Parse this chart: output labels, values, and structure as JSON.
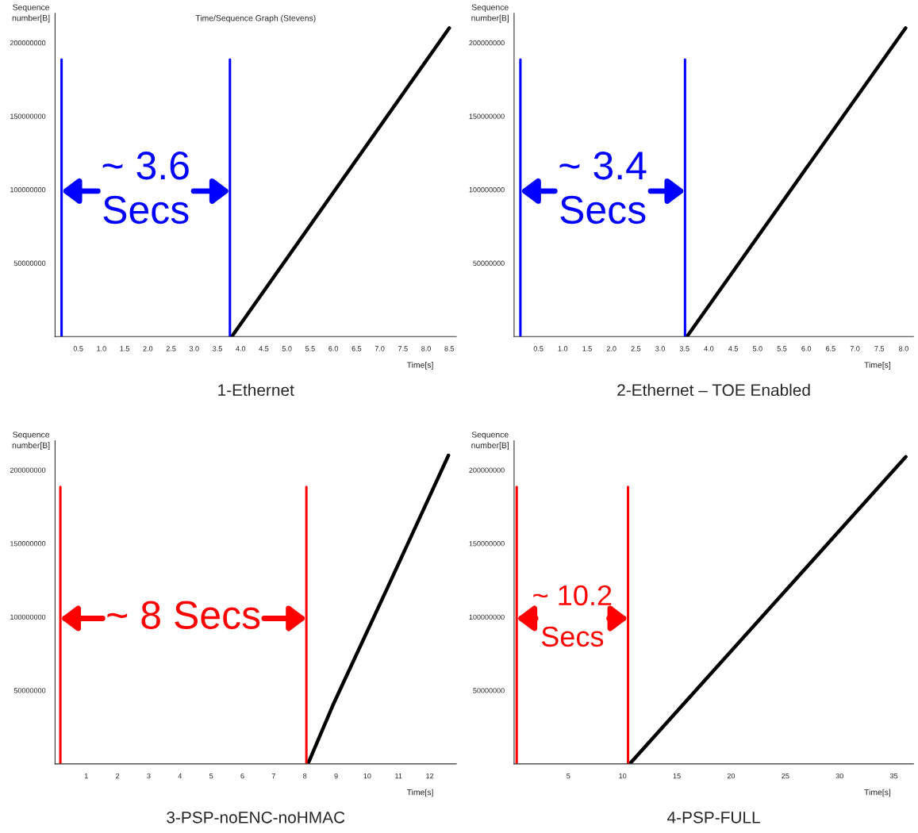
{
  "chart_data": [
    {
      "type": "line",
      "title": "1-Ethernet",
      "subtitle": "Time/Sequence Graph (Stevens)",
      "xlabel": "Time[s]",
      "ylabel": "Sequence\nnumber[B]",
      "xlim": [
        0,
        8.65
      ],
      "ylim": [
        0,
        220000000
      ],
      "xticks": [
        0.5,
        {
          "value": 1,
          "label": "1.0"
        },
        1.5,
        {
          "value": 2,
          "label": "2.0"
        },
        2.5,
        {
          "value": 3,
          "label": "3.0"
        },
        3.5,
        {
          "value": 4,
          "label": "4.0"
        },
        4.5,
        {
          "value": 5,
          "label": "5.0"
        },
        5.5,
        {
          "value": 6,
          "label": "6.0"
        },
        6.5,
        {
          "value": 7,
          "label": "7.0"
        },
        7.5,
        {
          "value": 8,
          "label": "8.0"
        },
        8.5
      ],
      "yticks": [
        50000000,
        100000000,
        150000000,
        200000000
      ],
      "series": [
        {
          "color": "#000000",
          "x": [
            3.81,
            8.5
          ],
          "values": [
            0,
            210000000
          ]
        }
      ],
      "ref_lines": [
        {
          "axis": "x",
          "value": 0.14,
          "color": "#0000ff"
        },
        {
          "axis": "x",
          "value": 3.77,
          "color": "#0000ff"
        }
      ],
      "annotations": [
        "~ 3.6\nSecs"
      ],
      "grid": false
    },
    {
      "type": "line",
      "title": "2-Ethernet – TOE Enabled",
      "xlabel": "Time[s]",
      "ylabel": "Sequence\nnumber[B]",
      "xlim": [
        0,
        8.2
      ],
      "ylim": [
        0,
        220000000
      ],
      "xticks": [
        0.5,
        {
          "value": 1,
          "label": "1.0"
        },
        1.5,
        {
          "value": 2,
          "label": "2.0"
        },
        2.5,
        {
          "value": 3,
          "label": "3.0"
        },
        3.5,
        {
          "value": 4,
          "label": "4.0"
        },
        4.5,
        {
          "value": 5,
          "label": "5.0"
        },
        5.5,
        {
          "value": 6,
          "label": "6.0"
        },
        6.5,
        {
          "value": 7,
          "label": "7.0"
        },
        7.5,
        {
          "value": 8,
          "label": "8.0"
        }
      ],
      "yticks": [
        50000000,
        100000000,
        150000000,
        200000000
      ],
      "series": [
        {
          "color": "#000000",
          "x": [
            3.55,
            8.04
          ],
          "values": [
            0,
            210000000
          ]
        }
      ],
      "ref_lines": [
        {
          "axis": "x",
          "value": 0.13,
          "color": "#0000ff"
        },
        {
          "axis": "x",
          "value": 3.51,
          "color": "#0000ff"
        }
      ],
      "annotations": [
        "~ 3.4\nSecs"
      ],
      "grid": false
    },
    {
      "type": "line",
      "title": "3-PSP-noENC-noHMAC",
      "xlabel": "Time[s]",
      "ylabel": "Sequence\nnumber[B]",
      "xlim": [
        0,
        12.85
      ],
      "ylim": [
        0,
        220000000
      ],
      "xticks": [
        1,
        2,
        3,
        4,
        5,
        6,
        7,
        8,
        9,
        10,
        11,
        12
      ],
      "yticks": [
        50000000,
        100000000,
        150000000,
        200000000
      ],
      "series": [
        {
          "color": "#000000",
          "x": [
            8.1,
            8.9,
            10.65,
            12.6
          ],
          "values": [
            0,
            40000000,
            120000000,
            210000000
          ]
        }
      ],
      "ref_lines": [
        {
          "axis": "x",
          "value": 0.17,
          "color": "#ff0000"
        },
        {
          "axis": "x",
          "value": 8.05,
          "color": "#ff0000"
        }
      ],
      "annotations": [
        "~ 8 Secs"
      ],
      "grid": false
    },
    {
      "type": "line",
      "title": "4-PSP-FULL",
      "xlabel": "Time[s]",
      "ylabel": "Sequence\nnumber[B]",
      "xlim": [
        0,
        36.8
      ],
      "ylim": [
        0,
        220000000
      ],
      "xticks": [
        5,
        10,
        15,
        20,
        25,
        30,
        35
      ],
      "yticks": [
        50000000,
        100000000,
        150000000,
        200000000
      ],
      "series": [
        {
          "color": "#000000",
          "x": [
            10.66,
            36.1
          ],
          "values": [
            0,
            209000000
          ]
        }
      ],
      "ref_lines": [
        {
          "axis": "x",
          "value": 0.24,
          "color": "#ff0000"
        },
        {
          "axis": "x",
          "value": 10.5,
          "color": "#ff0000"
        }
      ],
      "annotations": [
        "~ 10.2\nSecs"
      ],
      "grid": false
    }
  ]
}
